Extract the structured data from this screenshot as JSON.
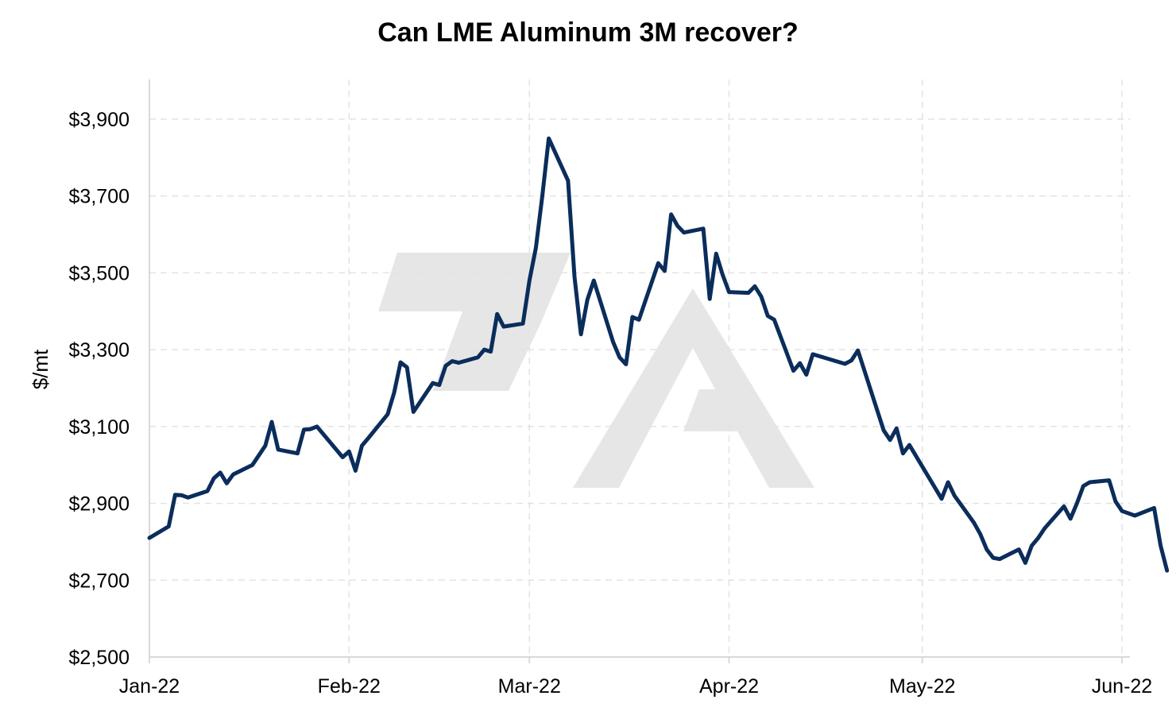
{
  "chart_data": {
    "type": "line",
    "title": "Can LME Aluminum 3M recover?",
    "xlabel": "",
    "ylabel": "$/mt",
    "ylim": [
      2500,
      3900
    ],
    "yticks": [
      2500,
      2700,
      2900,
      3100,
      3300,
      3500,
      3700,
      3900
    ],
    "ytick_labels": [
      "$2,500",
      "$2,700",
      "$2,900",
      "$3,100",
      "$3,300",
      "$3,500",
      "$3,700",
      "$3,900"
    ],
    "xlim": [
      "2022-01-01",
      "2022-06-01"
    ],
    "xticks": [
      "2022-01-01",
      "2022-02-01",
      "2022-03-01",
      "2022-04-01",
      "2022-05-01",
      "2022-06-01"
    ],
    "xtick_labels": [
      "Jan-22",
      "Feb-22",
      "Mar-22",
      "Apr-22",
      "May-22",
      "Jun-22"
    ],
    "grid": true,
    "legend": "none",
    "watermark": "7A",
    "colors": {
      "line": "#0b2d5b",
      "grid": "#e3e3e3",
      "axis": "#d9d9d9",
      "watermark": "#e6e6e6"
    },
    "series": [
      {
        "points": [
          [
            "2022-01-01",
            2810
          ],
          [
            "2022-01-04",
            2840
          ],
          [
            "2022-01-05",
            2922
          ],
          [
            "2022-01-06",
            2921
          ],
          [
            "2022-01-07",
            2915
          ],
          [
            "2022-01-10",
            2932
          ],
          [
            "2022-01-11",
            2965
          ],
          [
            "2022-01-12",
            2980
          ],
          [
            "2022-01-13",
            2952
          ],
          [
            "2022-01-14",
            2975
          ],
          [
            "2022-01-17",
            3000
          ],
          [
            "2022-01-19",
            3050
          ],
          [
            "2022-01-20",
            3112
          ],
          [
            "2022-01-21",
            3040
          ],
          [
            "2022-01-24",
            3030
          ],
          [
            "2022-01-25",
            3092
          ],
          [
            "2022-01-26",
            3093
          ],
          [
            "2022-01-27",
            3100
          ],
          [
            "2022-01-28",
            3080
          ],
          [
            "2022-01-31",
            3020
          ],
          [
            "2022-02-01",
            3035
          ],
          [
            "2022-02-02",
            2985
          ],
          [
            "2022-02-03",
            3050
          ],
          [
            "2022-02-04",
            3070
          ],
          [
            "2022-02-07",
            3132
          ],
          [
            "2022-02-08",
            3188
          ],
          [
            "2022-02-09",
            3267
          ],
          [
            "2022-02-10",
            3254
          ],
          [
            "2022-02-11",
            3138
          ],
          [
            "2022-02-14",
            3213
          ],
          [
            "2022-02-15",
            3208
          ],
          [
            "2022-02-16",
            3258
          ],
          [
            "2022-02-17",
            3270
          ],
          [
            "2022-02-18",
            3266
          ],
          [
            "2022-02-21",
            3280
          ],
          [
            "2022-02-22",
            3300
          ],
          [
            "2022-02-23",
            3295
          ],
          [
            "2022-02-24",
            3393
          ],
          [
            "2022-02-25",
            3360
          ],
          [
            "2022-02-28",
            3368
          ],
          [
            "2022-03-01",
            3480
          ],
          [
            "2022-03-02",
            3565
          ],
          [
            "2022-03-03",
            3700
          ],
          [
            "2022-03-04",
            3850
          ],
          [
            "2022-03-07",
            3740
          ],
          [
            "2022-03-08",
            3490
          ],
          [
            "2022-03-09",
            3340
          ],
          [
            "2022-03-10",
            3430
          ],
          [
            "2022-03-11",
            3480
          ],
          [
            "2022-03-14",
            3320
          ],
          [
            "2022-03-15",
            3280
          ],
          [
            "2022-03-16",
            3262
          ],
          [
            "2022-03-17",
            3385
          ],
          [
            "2022-03-18",
            3378
          ],
          [
            "2022-03-21",
            3525
          ],
          [
            "2022-03-22",
            3505
          ],
          [
            "2022-03-23",
            3652
          ],
          [
            "2022-03-24",
            3622
          ],
          [
            "2022-03-25",
            3605
          ],
          [
            "2022-03-28",
            3615
          ],
          [
            "2022-03-29",
            3432
          ],
          [
            "2022-03-30",
            3550
          ],
          [
            "2022-03-31",
            3495
          ],
          [
            "2022-04-01",
            3450
          ],
          [
            "2022-04-04",
            3448
          ],
          [
            "2022-04-05",
            3465
          ],
          [
            "2022-04-06",
            3438
          ],
          [
            "2022-04-07",
            3388
          ],
          [
            "2022-04-08",
            3378
          ],
          [
            "2022-04-11",
            3245
          ],
          [
            "2022-04-12",
            3265
          ],
          [
            "2022-04-13",
            3235
          ],
          [
            "2022-04-14",
            3288
          ],
          [
            "2022-04-19",
            3263
          ],
          [
            "2022-04-20",
            3272
          ],
          [
            "2022-04-21",
            3298
          ],
          [
            "2022-04-25",
            3090
          ],
          [
            "2022-04-26",
            3065
          ],
          [
            "2022-04-27",
            3095
          ],
          [
            "2022-04-28",
            3030
          ],
          [
            "2022-04-29",
            3052
          ],
          [
            "2022-05-04",
            2912
          ],
          [
            "2022-05-05",
            2955
          ],
          [
            "2022-05-06",
            2920
          ],
          [
            "2022-05-09",
            2850
          ],
          [
            "2022-05-10",
            2820
          ],
          [
            "2022-05-11",
            2780
          ],
          [
            "2022-05-12",
            2758
          ],
          [
            "2022-05-13",
            2755
          ],
          [
            "2022-05-16",
            2780
          ],
          [
            "2022-05-17",
            2745
          ],
          [
            "2022-05-18",
            2790
          ],
          [
            "2022-05-19",
            2810
          ],
          [
            "2022-05-20",
            2835
          ],
          [
            "2022-05-23",
            2892
          ],
          [
            "2022-05-24",
            2860
          ],
          [
            "2022-05-25",
            2900
          ],
          [
            "2022-05-26",
            2945
          ],
          [
            "2022-05-27",
            2955
          ],
          [
            "2022-05-30",
            2960
          ],
          [
            "2022-05-31",
            2905
          ],
          [
            "2022-06-01",
            2880
          ],
          [
            "2022-06-03",
            2868
          ],
          [
            "2022-06-06",
            2888
          ],
          [
            "2022-06-07",
            2790
          ],
          [
            "2022-06-08",
            2725
          ]
        ]
      }
    ]
  }
}
